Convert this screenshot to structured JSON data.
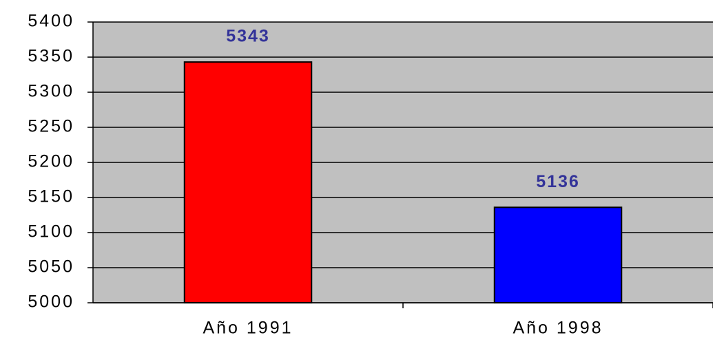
{
  "chart_data": {
    "type": "bar",
    "categories": [
      "Año 1991",
      "Año 1998"
    ],
    "values": [
      5343,
      5136
    ],
    "colors": [
      "#ff0000",
      "#0000ff"
    ],
    "ylim": [
      5000,
      5400
    ],
    "yticks": [
      5000,
      5050,
      5100,
      5150,
      5200,
      5250,
      5300,
      5350,
      5400
    ],
    "grid": true
  }
}
